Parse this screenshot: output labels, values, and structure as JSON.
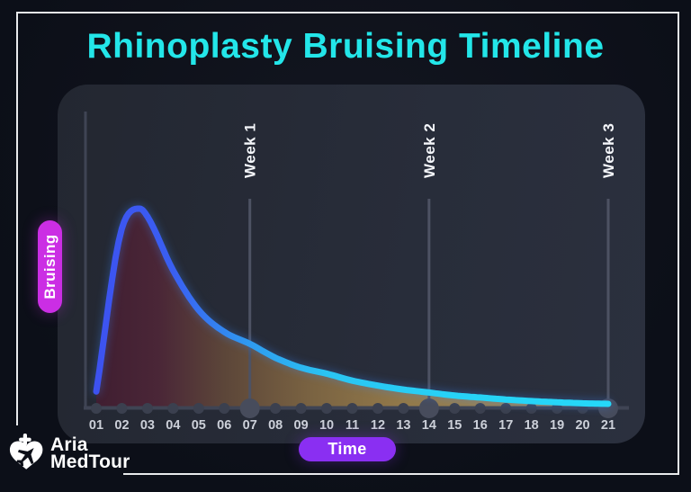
{
  "title": "Rhinoplasty Bruising Timeline",
  "badges": {
    "y": "Bruising",
    "x": "Time"
  },
  "logo": {
    "line1": "Aria",
    "line2": "MedTour"
  },
  "colors": {
    "title": "#23e6e9",
    "bruising_badge": "#cb2ee4",
    "time_badge": "#8a2ff2",
    "panel": "#282d3a",
    "background": "#0c0f18",
    "frame": "#e9eaec"
  },
  "chart_data": {
    "type": "area",
    "title": "Rhinoplasty Bruising Timeline",
    "xlabel": "Time",
    "ylabel": "Bruising",
    "x": [
      1,
      2,
      3,
      4,
      5,
      6,
      7,
      8,
      9,
      10,
      11,
      12,
      13,
      14,
      15,
      16,
      17,
      18,
      19,
      20,
      21
    ],
    "x_tick_labels": [
      "01",
      "02",
      "03",
      "04",
      "05",
      "06",
      "07",
      "08",
      "09",
      "10",
      "11",
      "12",
      "13",
      "14",
      "15",
      "16",
      "17",
      "18",
      "19",
      "20",
      "21"
    ],
    "values": [
      8,
      90,
      96,
      69,
      49,
      38,
      32,
      25,
      20,
      17,
      13.5,
      11,
      9,
      7.5,
      6,
      5,
      4,
      3.2,
      2.6,
      2.1,
      1.8
    ],
    "peak_sample": {
      "x": 2.7,
      "value": 100
    },
    "ylim": [
      0,
      100
    ],
    "grid": false,
    "markers": [
      {
        "label": "Week 1",
        "x": 7
      },
      {
        "label": "Week 2",
        "x": 14
      },
      {
        "label": "Week 3",
        "x": 21
      }
    ],
    "emphasized_days": [
      7,
      14,
      21
    ],
    "axis_color": "#3f4454",
    "marker_line_color": "#4d5263",
    "dot_color": "#3b404f",
    "dot_big_color": "#474c5c",
    "tick_label_color": "#ccd0d9",
    "marker_label_color": "#f4f6fa",
    "line_gradient_stops": [
      [
        0,
        "#3d52f1"
      ],
      [
        0.15,
        "#3a5ff1"
      ],
      [
        0.3,
        "#2f9bf0"
      ],
      [
        0.45,
        "#2ac4f2"
      ],
      [
        0.7,
        "#27d2f6"
      ],
      [
        1,
        "#25d8f9"
      ]
    ],
    "fill_gradient_stops": [
      [
        0,
        "#401e31"
      ],
      [
        0.12,
        "#4a2637"
      ],
      [
        0.25,
        "#5c4639"
      ],
      [
        0.42,
        "#7a6342"
      ],
      [
        0.6,
        "#92794a"
      ],
      [
        0.8,
        "#9a8354"
      ],
      [
        1,
        "#9f8c66"
      ]
    ]
  }
}
